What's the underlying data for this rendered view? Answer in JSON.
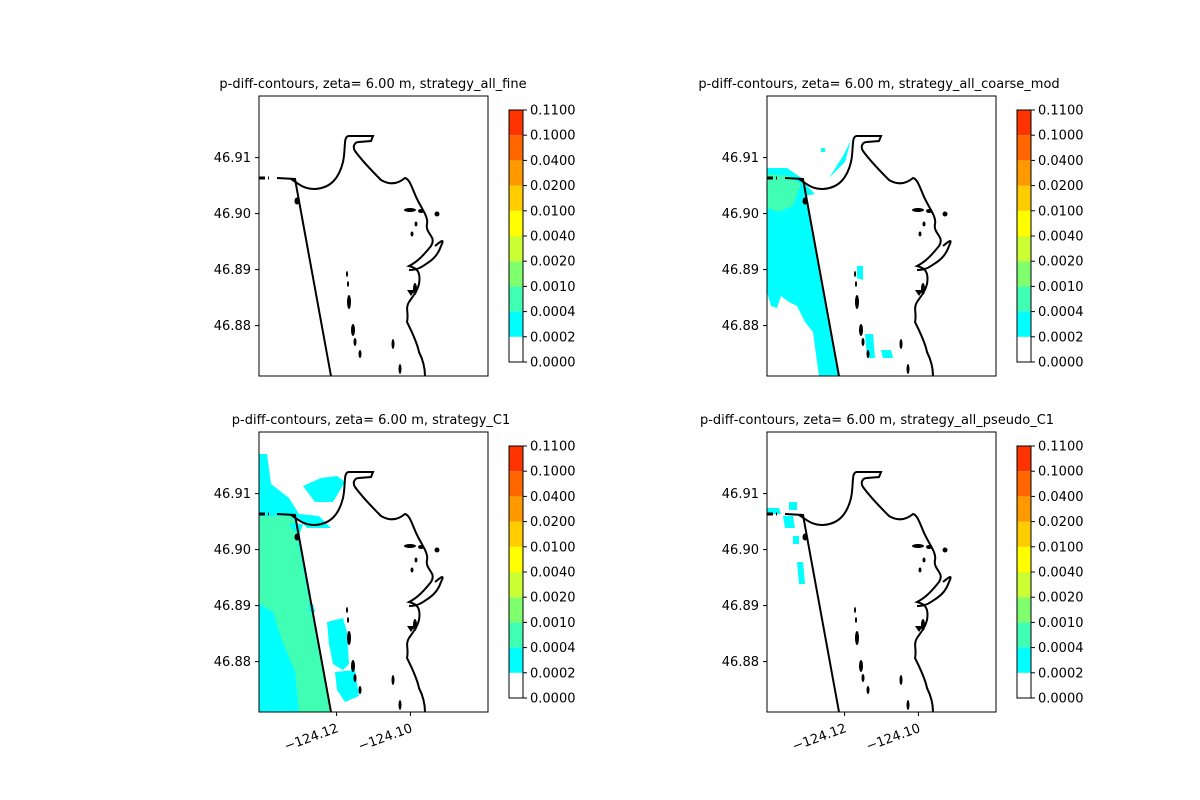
{
  "colors": {
    "levels": [
      "#ffffff",
      "#00ffff",
      "#40ffb4",
      "#80ff6e",
      "#ccff33",
      "#ffff00",
      "#ffcc00",
      "#ff9900",
      "#ff6600",
      "#ff3300",
      "#ee0000"
    ],
    "coast": "#000000"
  },
  "chart_data": [
    {
      "type": "contour",
      "title": "p-diff-contours, zeta= 6.00 m, strategy_all_fine",
      "ytick_labels": [
        "46.91",
        "46.90",
        "46.89",
        "46.88"
      ],
      "xtick_labels": [],
      "colorbar_ticks": [
        "0.1100",
        "0.1000",
        "0.0400",
        "0.0200",
        "0.0100",
        "0.0040",
        "0.0020",
        "0.0010",
        "0.0004",
        "0.0002",
        "0.0000"
      ],
      "xlim": [
        -124.141,
        -124.079
      ],
      "ylim": [
        46.871,
        46.921
      ]
    },
    {
      "type": "contour",
      "title": "p-diff-contours, zeta= 6.00 m, strategy_all_coarse_mod",
      "ytick_labels": [
        "46.91",
        "46.90",
        "46.89",
        "46.88"
      ],
      "xtick_labels": [],
      "colorbar_ticks": [
        "0.1100",
        "0.1000",
        "0.0400",
        "0.0200",
        "0.0100",
        "0.0040",
        "0.0020",
        "0.0010",
        "0.0004",
        "0.0002",
        "0.0000"
      ],
      "xlim": [
        -124.141,
        -124.079
      ],
      "ylim": [
        46.871,
        46.921
      ]
    },
    {
      "type": "contour",
      "title": "p-diff-contours, zeta= 6.00 m, strategy_C1",
      "ytick_labels": [
        "46.91",
        "46.90",
        "46.89",
        "46.88"
      ],
      "xtick_labels": [
        "−124.12",
        "−124.10"
      ],
      "colorbar_ticks": [
        "0.1100",
        "0.1000",
        "0.0400",
        "0.0200",
        "0.0100",
        "0.0040",
        "0.0020",
        "0.0010",
        "0.0004",
        "0.0002",
        "0.0000"
      ],
      "xlim": [
        -124.141,
        -124.079
      ],
      "ylim": [
        46.871,
        46.921
      ]
    },
    {
      "type": "contour",
      "title": "p-diff-contours, zeta= 6.00 m, strategy_all_pseudo_C1",
      "ytick_labels": [
        "46.91",
        "46.90",
        "46.89",
        "46.88"
      ],
      "xtick_labels": [
        "−124.12",
        "−124.10"
      ],
      "colorbar_ticks": [
        "0.1100",
        "0.1000",
        "0.0400",
        "0.0200",
        "0.0100",
        "0.0040",
        "0.0020",
        "0.0010",
        "0.0004",
        "0.0002",
        "0.0000"
      ],
      "xlim": [
        -124.141,
        -124.079
      ],
      "ylim": [
        46.871,
        46.921
      ]
    }
  ]
}
